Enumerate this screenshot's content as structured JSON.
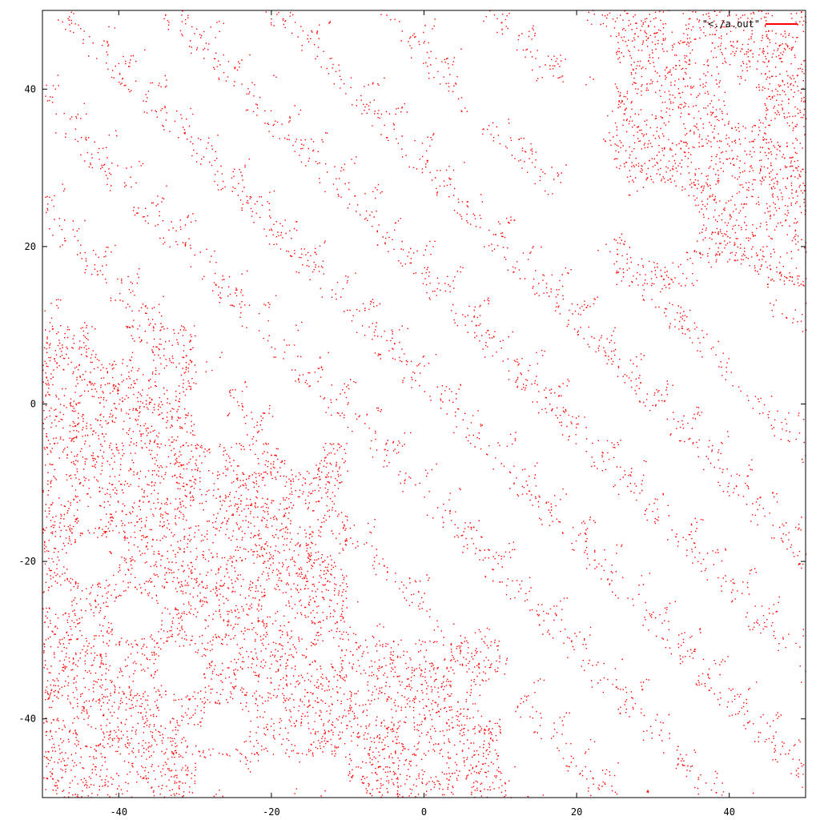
{
  "chart_data": {
    "type": "scatter",
    "title": "",
    "xlabel": "",
    "ylabel": "",
    "xlim": [
      -50,
      50
    ],
    "ylim": [
      -50,
      50
    ],
    "x_ticks": [
      -40,
      -20,
      0,
      20,
      40
    ],
    "y_ticks": [
      -40,
      -20,
      0,
      20,
      40
    ],
    "x_tick_labels": [
      "-40",
      "-20",
      "0",
      "20",
      "40"
    ],
    "y_tick_labels": [
      "-40",
      "-20",
      "0",
      "20",
      "40"
    ],
    "grid": false,
    "legend_position": "top-right",
    "series": [
      {
        "name": "\"<./a.out\"",
        "color": "#ff0000",
        "marker": "dot",
        "dense_regions": [
          {
            "x": [
              -50,
              -30
            ],
            "y": [
              -50,
              10
            ],
            "density": "high"
          },
          {
            "x": [
              -30,
              -10
            ],
            "y": [
              -45,
              -5
            ],
            "density": "high"
          },
          {
            "x": [
              -10,
              10
            ],
            "y": [
              -50,
              -30
            ],
            "density": "high"
          },
          {
            "x": [
              25,
              50
            ],
            "y": [
              15,
              50
            ],
            "density": "high"
          }
        ],
        "holes": [
          {
            "cx": -44,
            "cy": -20,
            "r": 3
          },
          {
            "cx": -38,
            "cy": -27,
            "r": 3
          },
          {
            "cx": -32,
            "cy": -34,
            "r": 3
          },
          {
            "cx": -26,
            "cy": -41,
            "r": 3
          },
          {
            "cx": -20,
            "cy": -48,
            "r": 3
          },
          {
            "cx": -41,
            "cy": 8,
            "r": 2.5
          },
          {
            "cx": -28,
            "cy": 1,
            "r": 2.5
          },
          {
            "cx": -16,
            "cy": -6,
            "r": 2.5
          },
          {
            "cx": -9,
            "cy": -12,
            "r": 2.5
          },
          {
            "cx": -3,
            "cy": -19,
            "r": 2.5
          },
          {
            "cx": 3,
            "cy": -25,
            "r": 2.5
          },
          {
            "cx": 10,
            "cy": -37,
            "r": 2.5
          },
          {
            "cx": -8,
            "cy": 46,
            "r": 4
          },
          {
            "cx": 9,
            "cy": 40,
            "r": 4
          },
          {
            "cx": 19,
            "cy": 36,
            "r": 5
          },
          {
            "cx": 22,
            "cy": 25,
            "r": 5
          },
          {
            "cx": 31,
            "cy": 23,
            "r": 5
          },
          {
            "cx": 40,
            "cy": 13,
            "r": 5
          },
          {
            "cx": 45,
            "cy": 6,
            "r": 5
          },
          {
            "cx": 42,
            "cy": 38,
            "r": 2.5
          }
        ]
      }
    ]
  }
}
